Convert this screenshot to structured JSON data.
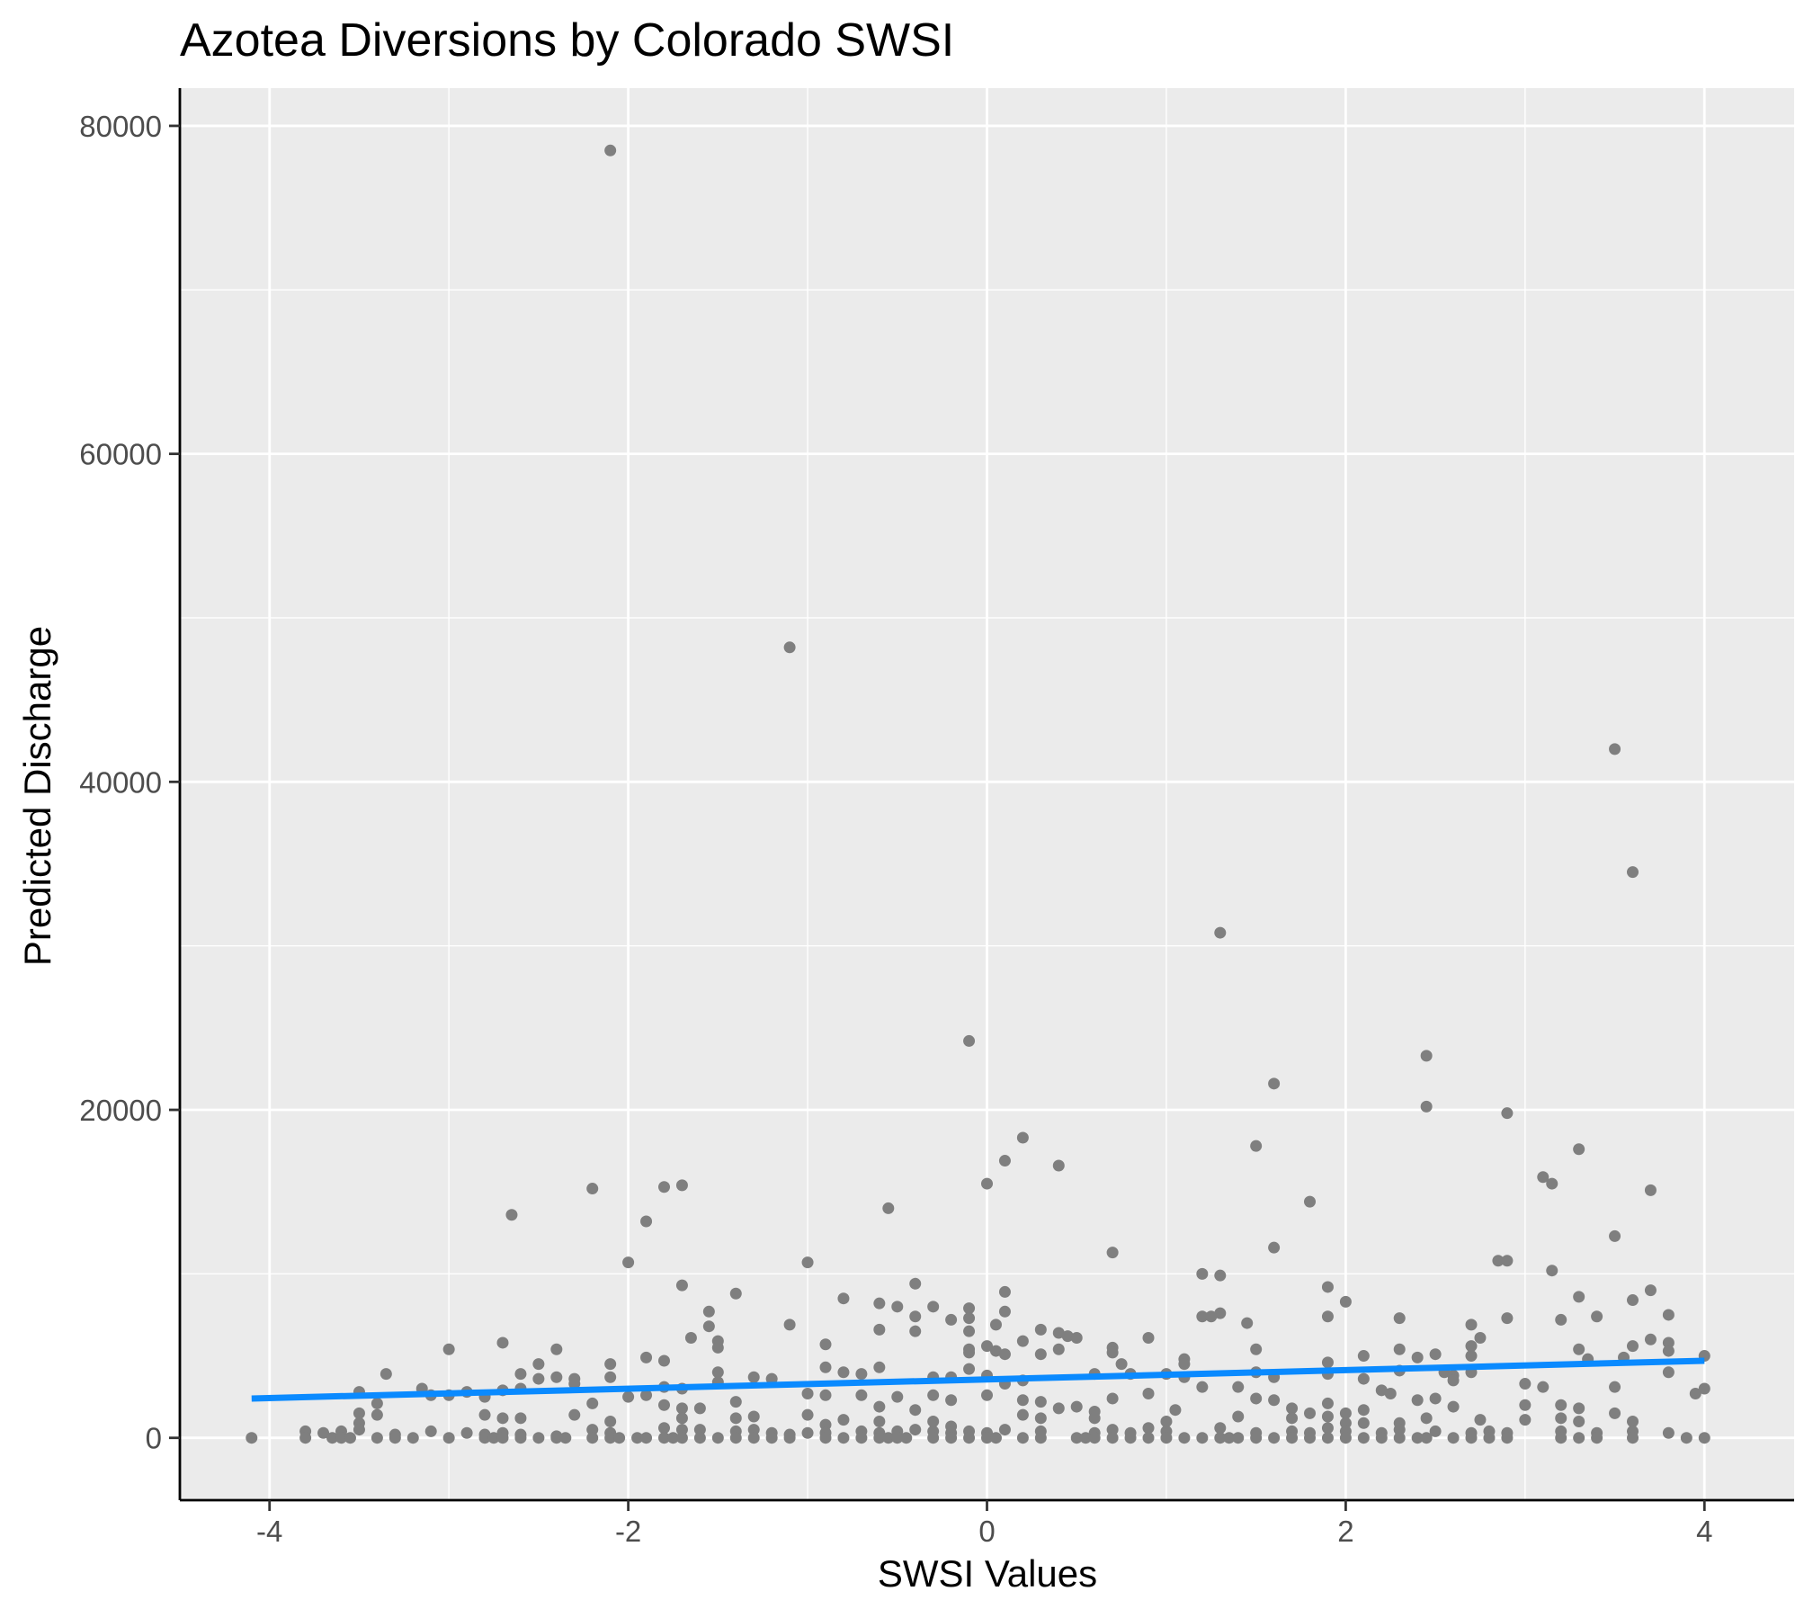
{
  "chart_data": {
    "type": "scatter",
    "title": "Azotea Diversions by Colorado SWSI",
    "xlabel": "SWSI Values",
    "ylabel": "Predicted Discharge",
    "xlim": [
      -4.5,
      4.5
    ],
    "ylim": [
      -3800,
      82300
    ],
    "x_ticks": [
      -4,
      -2,
      0,
      2,
      4
    ],
    "y_ticks": [
      0,
      20000,
      40000,
      60000,
      80000
    ],
    "grid": true,
    "legend": "none",
    "colors": {
      "panel": "#EBEBEB",
      "grid": "#FFFFFF",
      "points": "#7F7F7F",
      "trend": "#0A8AFF"
    },
    "trend_line": {
      "x": [
        -4.1,
        4.0
      ],
      "y": [
        2400,
        4700
      ]
    },
    "points": [
      [
        -2.1,
        78500
      ],
      [
        -1.1,
        48200
      ],
      [
        3.5,
        42000
      ],
      [
        3.6,
        34500
      ],
      [
        1.3,
        30800
      ],
      [
        -0.1,
        24200
      ],
      [
        2.45,
        23300
      ],
      [
        1.6,
        21600
      ],
      [
        2.45,
        20200
      ],
      [
        2.9,
        19800
      ],
      [
        0.2,
        18300
      ],
      [
        1.5,
        17800
      ],
      [
        3.3,
        17600
      ],
      [
        0.1,
        16900
      ],
      [
        0.4,
        16600
      ],
      [
        3.1,
        15900
      ],
      [
        3.15,
        15500
      ],
      [
        0.0,
        15500
      ],
      [
        -1.7,
        15400
      ],
      [
        -1.8,
        15300
      ],
      [
        -2.2,
        15200
      ],
      [
        3.7,
        15100
      ],
      [
        1.8,
        14400
      ],
      [
        -0.55,
        14000
      ],
      [
        -2.65,
        13600
      ],
      [
        -1.9,
        13200
      ],
      [
        3.5,
        12300
      ],
      [
        1.6,
        11600
      ],
      [
        0.7,
        11300
      ],
      [
        2.85,
        10800
      ],
      [
        2.9,
        10800
      ],
      [
        -2.0,
        10700
      ],
      [
        -1.0,
        10700
      ],
      [
        3.15,
        10200
      ],
      [
        1.2,
        10000
      ],
      [
        1.3,
        9900
      ],
      [
        -0.4,
        9400
      ],
      [
        -1.7,
        9300
      ],
      [
        1.9,
        9200
      ],
      [
        3.7,
        9000
      ],
      [
        0.1,
        8900
      ],
      [
        -1.4,
        8800
      ],
      [
        3.3,
        8600
      ],
      [
        3.6,
        8400
      ],
      [
        -0.8,
        8500
      ],
      [
        2.0,
        8300
      ],
      [
        -0.6,
        8200
      ],
      [
        -0.5,
        8000
      ],
      [
        -0.3,
        8000
      ],
      [
        -0.1,
        7900
      ],
      [
        0.1,
        7700
      ],
      [
        -1.55,
        7700
      ],
      [
        1.3,
        7600
      ],
      [
        1.2,
        7400
      ],
      [
        1.25,
        7400
      ],
      [
        -0.1,
        7300
      ],
      [
        -0.4,
        7400
      ],
      [
        1.9,
        7400
      ],
      [
        2.3,
        7300
      ],
      [
        2.9,
        7300
      ],
      [
        3.2,
        7200
      ],
      [
        3.4,
        7400
      ],
      [
        3.8,
        7500
      ],
      [
        -0.2,
        7200
      ],
      [
        -1.1,
        6900
      ],
      [
        0.05,
        6900
      ],
      [
        -1.55,
        6800
      ],
      [
        0.3,
        6600
      ],
      [
        2.7,
        6900
      ],
      [
        1.45,
        7000
      ],
      [
        -0.6,
        6600
      ],
      [
        -0.4,
        6500
      ],
      [
        -0.1,
        6500
      ],
      [
        0.4,
        6400
      ],
      [
        0.45,
        6200
      ],
      [
        0.9,
        6100
      ],
      [
        -1.65,
        6100
      ],
      [
        2.75,
        6100
      ],
      [
        3.7,
        6000
      ],
      [
        -1.5,
        5900
      ],
      [
        3.8,
        5800
      ],
      [
        -0.9,
        5700
      ],
      [
        -2.7,
        5800
      ],
      [
        0.2,
        5900
      ],
      [
        0.5,
        6100
      ],
      [
        -1.5,
        5500
      ],
      [
        0.0,
        5600
      ],
      [
        0.4,
        5400
      ],
      [
        0.7,
        5500
      ],
      [
        -0.1,
        5400
      ],
      [
        0.05,
        5300
      ],
      [
        -0.1,
        5200
      ],
      [
        0.1,
        5100
      ],
      [
        0.3,
        5100
      ],
      [
        0.7,
        5200
      ],
      [
        1.1,
        4800
      ],
      [
        1.5,
        5400
      ],
      [
        2.1,
        5000
      ],
      [
        2.3,
        5400
      ],
      [
        2.5,
        5100
      ],
      [
        2.4,
        4900
      ],
      [
        2.7,
        5600
      ],
      [
        2.7,
        5000
      ],
      [
        3.3,
        5400
      ],
      [
        3.55,
        4900
      ],
      [
        3.6,
        5600
      ],
      [
        3.8,
        5300
      ],
      [
        4.0,
        5000
      ],
      [
        3.35,
        4800
      ],
      [
        -3.0,
        5400
      ],
      [
        -2.4,
        5400
      ],
      [
        -1.8,
        4700
      ],
      [
        -1.9,
        4900
      ],
      [
        -2.1,
        4500
      ],
      [
        -2.5,
        4500
      ],
      [
        -0.9,
        4300
      ],
      [
        -0.6,
        4300
      ],
      [
        0.75,
        4500
      ],
      [
        1.1,
        4500
      ],
      [
        1.9,
        4600
      ],
      [
        3.8,
        4000
      ],
      [
        -0.1,
        4200
      ],
      [
        -0.2,
        3700
      ],
      [
        -0.3,
        3700
      ],
      [
        0.0,
        3800
      ],
      [
        0.2,
        3500
      ],
      [
        0.6,
        3900
      ],
      [
        0.8,
        3900
      ],
      [
        1.0,
        3900
      ],
      [
        1.1,
        3700
      ],
      [
        1.5,
        4000
      ],
      [
        1.6,
        3700
      ],
      [
        1.9,
        3900
      ],
      [
        2.1,
        3600
      ],
      [
        2.3,
        4100
      ],
      [
        2.55,
        4000
      ],
      [
        2.6,
        3800
      ],
      [
        2.6,
        3500
      ],
      [
        2.7,
        4000
      ],
      [
        3.0,
        3300
      ],
      [
        3.1,
        3100
      ],
      [
        3.5,
        3100
      ],
      [
        -0.8,
        4000
      ],
      [
        -0.7,
        3900
      ],
      [
        -1.5,
        4000
      ],
      [
        -1.3,
        3700
      ],
      [
        -1.2,
        3600
      ],
      [
        -1.5,
        3400
      ],
      [
        -1.8,
        3100
      ],
      [
        -1.7,
        3000
      ],
      [
        -2.1,
        3700
      ],
      [
        -2.3,
        3600
      ],
      [
        -2.6,
        3900
      ],
      [
        -3.35,
        3900
      ],
      [
        -2.4,
        3700
      ],
      [
        -2.5,
        3600
      ],
      [
        -2.3,
        3300
      ],
      [
        -2.7,
        2900
      ],
      [
        -2.6,
        3000
      ],
      [
        -3.15,
        3000
      ],
      [
        -3.1,
        2600
      ],
      [
        -2.9,
        2800
      ],
      [
        -2.8,
        2500
      ],
      [
        -3.0,
        2600
      ],
      [
        -3.5,
        2800
      ],
      [
        -2.2,
        2100
      ],
      [
        -2.0,
        2500
      ],
      [
        -1.9,
        2600
      ],
      [
        -1.8,
        2000
      ],
      [
        -1.7,
        1800
      ],
      [
        -1.6,
        1800
      ],
      [
        -1.4,
        2200
      ],
      [
        -1.0,
        2700
      ],
      [
        -0.9,
        2600
      ],
      [
        -0.7,
        2600
      ],
      [
        -0.6,
        1900
      ],
      [
        -0.5,
        2500
      ],
      [
        -0.4,
        1700
      ],
      [
        -0.3,
        2600
      ],
      [
        -0.2,
        2300
      ],
      [
        0.0,
        2600
      ],
      [
        0.1,
        3300
      ],
      [
        0.2,
        2300
      ],
      [
        0.3,
        2200
      ],
      [
        0.4,
        1800
      ],
      [
        0.5,
        1900
      ],
      [
        0.6,
        1600
      ],
      [
        0.7,
        2400
      ],
      [
        0.9,
        2700
      ],
      [
        1.05,
        1700
      ],
      [
        1.2,
        3100
      ],
      [
        1.4,
        3100
      ],
      [
        1.5,
        2400
      ],
      [
        1.6,
        2300
      ],
      [
        1.7,
        1800
      ],
      [
        1.8,
        1500
      ],
      [
        1.9,
        2100
      ],
      [
        2.0,
        1500
      ],
      [
        2.1,
        1700
      ],
      [
        2.2,
        2900
      ],
      [
        2.25,
        2700
      ],
      [
        2.4,
        2300
      ],
      [
        2.5,
        2400
      ],
      [
        2.6,
        1900
      ],
      [
        2.75,
        1100
      ],
      [
        3.0,
        2000
      ],
      [
        3.2,
        2000
      ],
      [
        3.3,
        1800
      ],
      [
        3.5,
        1500
      ],
      [
        3.95,
        2700
      ],
      [
        -3.4,
        2100
      ],
      [
        -3.5,
        1500
      ],
      [
        -3.4,
        1400
      ],
      [
        -3.5,
        900
      ],
      [
        -2.8,
        1400
      ],
      [
        -2.7,
        1200
      ],
      [
        -2.6,
        1200
      ],
      [
        -2.3,
        1400
      ],
      [
        -2.1,
        1000
      ],
      [
        -1.7,
        1200
      ],
      [
        -1.4,
        1200
      ],
      [
        -1.3,
        1300
      ],
      [
        -1.0,
        1400
      ],
      [
        -0.9,
        800
      ],
      [
        -0.8,
        1100
      ],
      [
        -0.6,
        1000
      ],
      [
        -0.3,
        1000
      ],
      [
        -0.2,
        700
      ],
      [
        0.2,
        1400
      ],
      [
        0.3,
        1200
      ],
      [
        0.6,
        1200
      ],
      [
        1.0,
        1000
      ],
      [
        1.4,
        1300
      ],
      [
        1.7,
        1200
      ],
      [
        1.9,
        1300
      ],
      [
        2.0,
        900
      ],
      [
        2.1,
        900
      ],
      [
        2.3,
        900
      ],
      [
        2.45,
        1200
      ],
      [
        3.0,
        1100
      ],
      [
        3.2,
        1200
      ],
      [
        3.3,
        1000
      ],
      [
        3.6,
        1000
      ],
      [
        -3.8,
        400
      ],
      [
        -3.7,
        300
      ],
      [
        -3.6,
        400
      ],
      [
        -3.5,
        500
      ],
      [
        -3.3,
        200
      ],
      [
        -3.1,
        400
      ],
      [
        -2.9,
        300
      ],
      [
        -2.8,
        200
      ],
      [
        -2.7,
        300
      ],
      [
        -2.6,
        200
      ],
      [
        -2.4,
        100
      ],
      [
        -2.2,
        500
      ],
      [
        -2.1,
        300
      ],
      [
        -1.8,
        600
      ],
      [
        -1.7,
        500
      ],
      [
        -1.6,
        500
      ],
      [
        -1.4,
        400
      ],
      [
        -1.3,
        500
      ],
      [
        -1.2,
        300
      ],
      [
        -1.1,
        200
      ],
      [
        -1.0,
        300
      ],
      [
        -0.9,
        300
      ],
      [
        -0.7,
        400
      ],
      [
        -0.6,
        300
      ],
      [
        -0.5,
        400
      ],
      [
        -0.4,
        500
      ],
      [
        -0.3,
        400
      ],
      [
        -0.2,
        300
      ],
      [
        -0.1,
        400
      ],
      [
        0.0,
        300
      ],
      [
        0.1,
        500
      ],
      [
        0.3,
        400
      ],
      [
        0.6,
        300
      ],
      [
        0.7,
        500
      ],
      [
        0.8,
        300
      ],
      [
        0.9,
        600
      ],
      [
        1.0,
        400
      ],
      [
        1.3,
        600
      ],
      [
        1.5,
        300
      ],
      [
        1.7,
        400
      ],
      [
        1.8,
        300
      ],
      [
        1.9,
        600
      ],
      [
        2.0,
        400
      ],
      [
        2.2,
        300
      ],
      [
        2.3,
        500
      ],
      [
        2.5,
        400
      ],
      [
        2.7,
        300
      ],
      [
        2.8,
        400
      ],
      [
        2.9,
        300
      ],
      [
        3.2,
        400
      ],
      [
        3.4,
        300
      ],
      [
        3.6,
        400
      ],
      [
        3.8,
        300
      ],
      [
        -4.1,
        0
      ],
      [
        -3.8,
        0
      ],
      [
        -3.65,
        0
      ],
      [
        -3.6,
        0
      ],
      [
        -3.55,
        0
      ],
      [
        -3.4,
        0
      ],
      [
        -3.3,
        0
      ],
      [
        -3.2,
        0
      ],
      [
        -3.0,
        0
      ],
      [
        -2.8,
        0
      ],
      [
        -2.75,
        0
      ],
      [
        -2.7,
        0
      ],
      [
        -2.6,
        0
      ],
      [
        -2.5,
        0
      ],
      [
        -2.4,
        0
      ],
      [
        -2.35,
        0
      ],
      [
        -2.2,
        0
      ],
      [
        -2.1,
        0
      ],
      [
        -2.05,
        0
      ],
      [
        -1.95,
        0
      ],
      [
        -1.9,
        0
      ],
      [
        -1.8,
        0
      ],
      [
        -1.75,
        0
      ],
      [
        -1.7,
        0
      ],
      [
        -1.6,
        0
      ],
      [
        -1.5,
        0
      ],
      [
        -1.4,
        0
      ],
      [
        -1.3,
        0
      ],
      [
        -1.2,
        0
      ],
      [
        -1.1,
        0
      ],
      [
        -0.9,
        0
      ],
      [
        -0.8,
        0
      ],
      [
        -0.7,
        0
      ],
      [
        -0.6,
        0
      ],
      [
        -0.55,
        0
      ],
      [
        -0.5,
        0
      ],
      [
        -0.45,
        0
      ],
      [
        -0.3,
        0
      ],
      [
        -0.2,
        0
      ],
      [
        -0.1,
        0
      ],
      [
        0.0,
        0
      ],
      [
        0.05,
        0
      ],
      [
        0.2,
        0
      ],
      [
        0.3,
        0
      ],
      [
        0.5,
        0
      ],
      [
        0.55,
        0
      ],
      [
        0.6,
        0
      ],
      [
        0.7,
        0
      ],
      [
        0.8,
        0
      ],
      [
        0.9,
        0
      ],
      [
        1.0,
        0
      ],
      [
        1.1,
        0
      ],
      [
        1.2,
        0
      ],
      [
        1.3,
        0
      ],
      [
        1.35,
        0
      ],
      [
        1.4,
        0
      ],
      [
        1.5,
        0
      ],
      [
        1.6,
        0
      ],
      [
        1.7,
        0
      ],
      [
        1.8,
        0
      ],
      [
        1.9,
        0
      ],
      [
        2.0,
        0
      ],
      [
        2.1,
        0
      ],
      [
        2.2,
        0
      ],
      [
        2.3,
        0
      ],
      [
        2.4,
        0
      ],
      [
        2.45,
        0
      ],
      [
        2.6,
        0
      ],
      [
        2.7,
        0
      ],
      [
        2.8,
        0
      ],
      [
        2.9,
        0
      ],
      [
        3.2,
        0
      ],
      [
        3.3,
        0
      ],
      [
        3.4,
        0
      ],
      [
        3.6,
        0
      ],
      [
        3.9,
        0
      ],
      [
        4.0,
        0
      ],
      [
        4.0,
        3000
      ]
    ]
  }
}
